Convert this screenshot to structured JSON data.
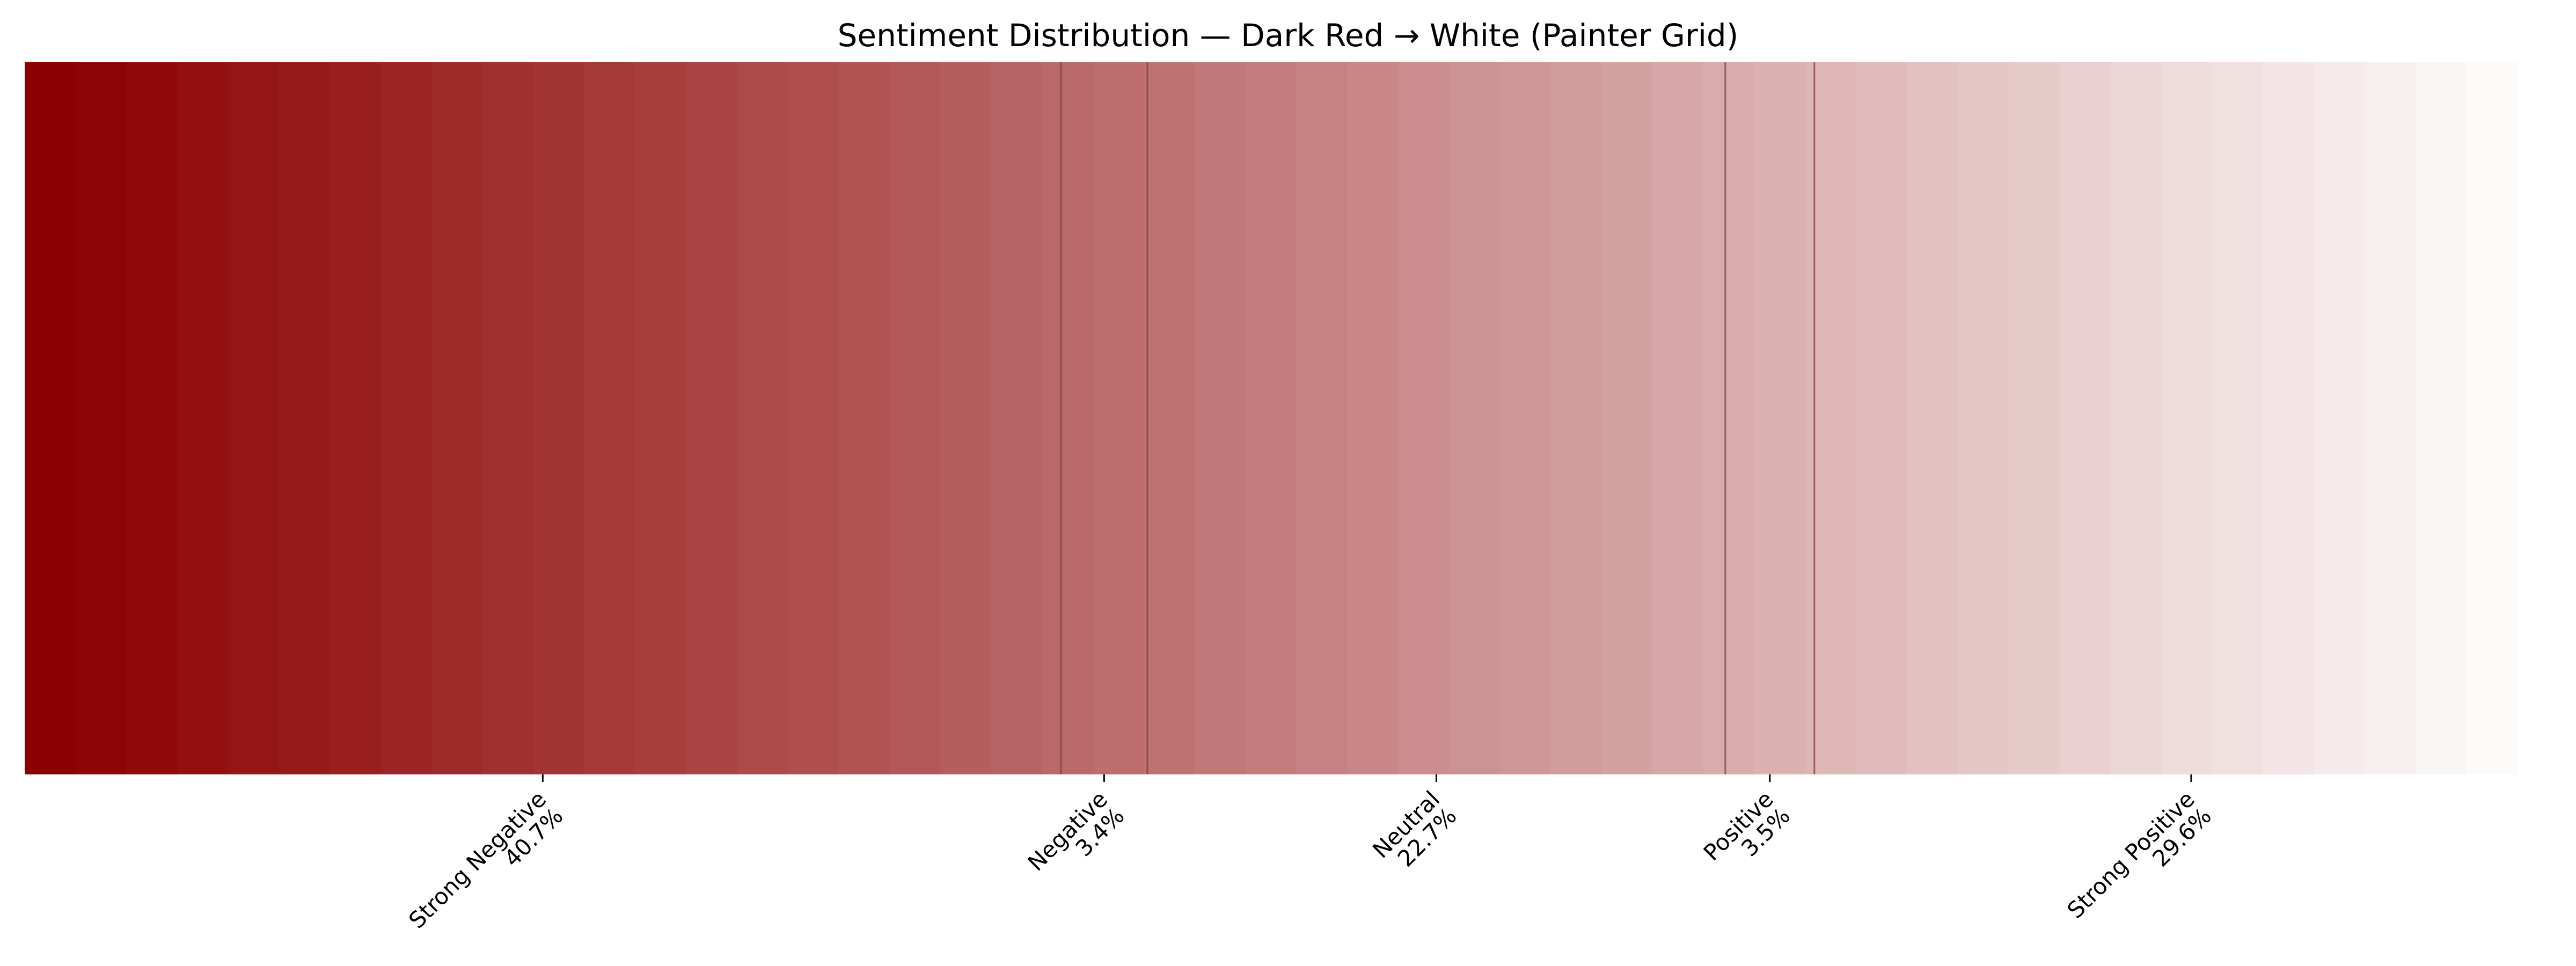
{
  "chart_data": {
    "type": "bar",
    "title": "Sentiment Distribution — Dark Red → White (Painter Grid)",
    "xlabel": "",
    "ylabel": "",
    "orientation": "horizontal-stacked",
    "grid": false,
    "legend": "none",
    "gradient": {
      "start_color": "#8b0000",
      "end_color": "#ffffff",
      "bands": 50
    },
    "boundary_line_color": "#7a3a3a",
    "segments": [
      {
        "label": "Strong Negative",
        "value": 40.7,
        "tick_label": "Strong Negative\n40.7%"
      },
      {
        "label": "Negative",
        "value": 3.4,
        "tick_label": "Negative\n3.4%"
      },
      {
        "label": "Neutral",
        "value": 22.7,
        "tick_label": "Neutral\n22.7%"
      },
      {
        "label": "Positive",
        "value": 3.5,
        "tick_label": "Positive\n3.5%"
      },
      {
        "label": "Strong Positive",
        "value": 29.6,
        "tick_label": "Strong Positive\n29.6%"
      }
    ]
  }
}
